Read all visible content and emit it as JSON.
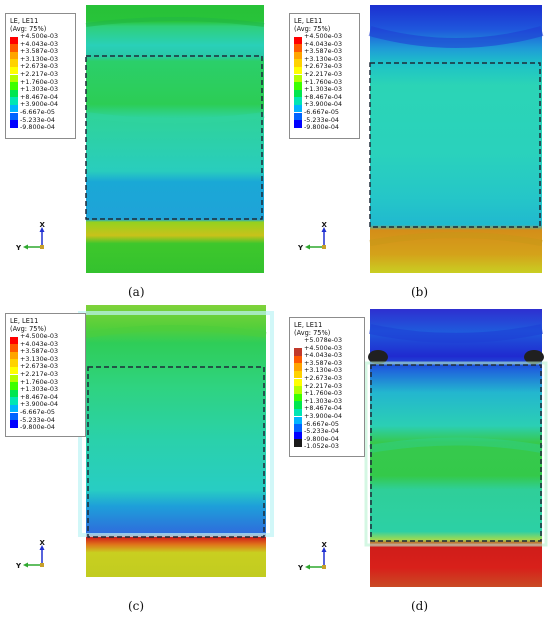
{
  "colors": {
    "ramp11": [
      "#ff0000",
      "#ff5a00",
      "#ffa500",
      "#ffd200",
      "#ffff00",
      "#b4ff00",
      "#3cff00",
      "#00e650",
      "#00e6b4",
      "#00b4ff",
      "#0064ff",
      "#0000ff"
    ],
    "ramp14": [
      "#ffffff",
      "#c0392b",
      "#ff5a00",
      "#ffa500",
      "#ffd200",
      "#ffff00",
      "#b4ff00",
      "#3cff00",
      "#00e650",
      "#00e6b4",
      "#00b4ff",
      "#0064ff",
      "#0000ff",
      "#1a1a1a"
    ],
    "dashed_box": "#1e2a38",
    "axis_y": "#2ea82e",
    "axis_x": "#1f2fd0"
  },
  "legend_a": {
    "title_line1": "LE, LE11",
    "title_line2": "(Avg: 75%)",
    "labels": [
      "+4.500e-03",
      "+4.043e-03",
      "+3.587e-03",
      "+3.130e-03",
      "+2.673e-03",
      "+2.217e-03",
      "+1.760e-03",
      "+1.303e-03",
      "+8.467e-04",
      "+3.900e-04",
      "-6.667e-05",
      "-5.233e-04",
      "-9.800e-04"
    ]
  },
  "legend_b": {
    "title_line1": "LE, LE11",
    "title_line2": "(Avg: 75%)",
    "labels": [
      "+4.500e-03",
      "+4.043e-03",
      "+3.587e-03",
      "+3.130e-03",
      "+2.673e-03",
      "+2.217e-03",
      "+1.760e-03",
      "+1.303e-03",
      "+8.467e-04",
      "+3.900e-04",
      "-6.667e-05",
      "-5.233e-04",
      "-9.800e-04"
    ]
  },
  "legend_c": {
    "title_line1": "LE, LE11",
    "title_line2": "(Avg: 75%)",
    "labels": [
      "+4.500e-03",
      "+4.043e-03",
      "+3.587e-03",
      "+3.130e-03",
      "+2.673e-03",
      "+2.217e-03",
      "+1.760e-03",
      "+1.303e-03",
      "+8.467e-04",
      "+3.900e-04",
      "-6.667e-05",
      "-5.233e-04",
      "-9.800e-04"
    ]
  },
  "legend_d": {
    "title_line1": "LE, LE11",
    "title_line2": "(Avg: 75%)",
    "labels": [
      "+5.078e-03",
      "+4.500e-03",
      "+4.043e-03",
      "+3.587e-03",
      "+3.130e-03",
      "+2.673e-03",
      "+2.217e-03",
      "+1.760e-03",
      "+1.303e-03",
      "+8.467e-04",
      "+3.900e-04",
      "-6.667e-05",
      "-5.233e-04",
      "-9.800e-04",
      "-1.052e-03"
    ]
  },
  "axis": {
    "x": "X",
    "y": "Y"
  },
  "captions": {
    "a": "(a)",
    "b": "(b)",
    "c": "(c)",
    "d": "(d)"
  }
}
